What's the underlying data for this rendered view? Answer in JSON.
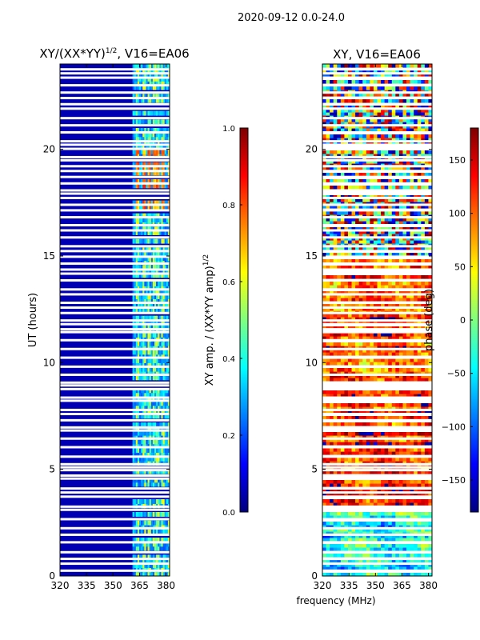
{
  "suptitle": "2020-09-12 0.0-24.0",
  "shared_xlabel": "frequency (MHz)",
  "colormap": [
    "#00007f",
    "#0000ff",
    "#007fff",
    "#00ffff",
    "#7fff7f",
    "#ffff00",
    "#ff7f00",
    "#ff0000",
    "#7f0000"
  ],
  "blank_row_color": "#ffffff",
  "chart_data": [
    {
      "type": "heatmap",
      "panel": "left",
      "title_main": "XY/(XX*YY)",
      "title_sup": "1/2",
      "title_rest": ", V16=EA06",
      "xlabel": "",
      "ylabel": "UT (hours)",
      "xlim": [
        320,
        382
      ],
      "ylim": [
        0,
        24
      ],
      "xticks": [
        320,
        335,
        350,
        365,
        380
      ],
      "yticks": [
        0,
        5,
        10,
        15,
        20
      ],
      "quantity": "normalized XY amplitude",
      "typical_values": {
        "below_360_MHz": 0.05,
        "360_to_382_MHz": [
          0.2,
          0.7
        ],
        "peaks_near_19_hours": 0.85
      },
      "bright_channels_MHz": [
        363,
        367,
        370,
        373,
        375,
        378,
        381
      ],
      "colorbar": {
        "label_main": "XY amp. / (XX*YY amp)",
        "label_sup": "1/2",
        "range": [
          0.0,
          1.0
        ],
        "ticks": [
          "0.0",
          "0.2",
          "0.4",
          "0.6",
          "0.8",
          "1.0"
        ]
      }
    },
    {
      "type": "heatmap",
      "panel": "right",
      "title": "XY, V16=EA06",
      "xlabel": "",
      "ylabel": "",
      "xlim": [
        320,
        382
      ],
      "ylim": [
        0,
        24
      ],
      "xticks": [
        320,
        335,
        350,
        365,
        380
      ],
      "yticks": [
        0,
        5,
        10,
        15,
        20
      ],
      "quantity": "XY phase (deg)",
      "phase_regimes_by_UT_hours": [
        {
          "from": 0,
          "to": 3,
          "phase_deg": -40
        },
        {
          "from": 3,
          "to": 7,
          "phase_deg": 130
        },
        {
          "from": 7,
          "to": 15,
          "phase_deg": 110
        },
        {
          "from": 15,
          "to": 24,
          "phase_deg": 0
        }
      ],
      "colorbar": {
        "label": "phase (deg)",
        "range": [
          -180,
          180
        ],
        "ticks": [
          "−150",
          "−100",
          "−50",
          "0",
          "50",
          "100",
          "150"
        ]
      }
    }
  ]
}
